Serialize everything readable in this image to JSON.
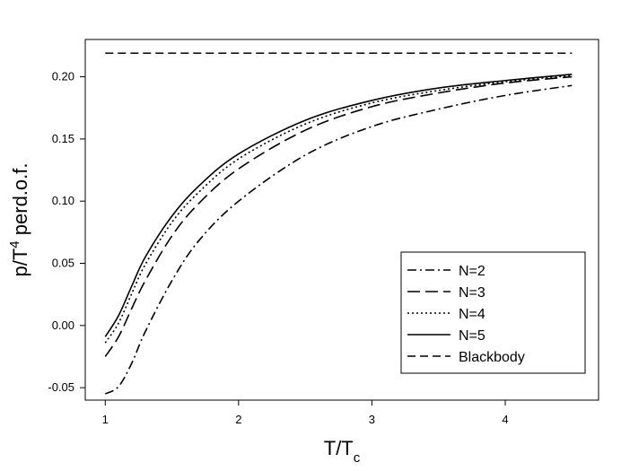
{
  "chart_data": {
    "type": "line",
    "title": "",
    "xlabel": {
      "main": "T/T",
      "sub": "c"
    },
    "ylabel": {
      "pre": "p/T",
      "sup": "4",
      "post": " perd.o.f."
    },
    "xlim": [
      0.85,
      4.7
    ],
    "ylim": [
      -0.06,
      0.23
    ],
    "x_ticks": [
      1,
      2,
      3,
      4
    ],
    "x_tick_labels": [
      "1",
      "2",
      "3",
      "4"
    ],
    "y_ticks": [
      -0.05,
      0.0,
      0.05,
      0.1,
      0.15,
      0.2
    ],
    "y_tick_labels": [
      "-0.05",
      "0.00",
      "0.05",
      "0.10",
      "0.15",
      "0.20"
    ],
    "grid": false,
    "legend_position": "bottom-right",
    "x": [
      1.0,
      1.1,
      1.2,
      1.3,
      1.5,
      1.7,
      2.0,
      2.5,
      3.0,
      3.5,
      4.0,
      4.5
    ],
    "series": [
      {
        "name": "N=2",
        "style": "dash-dot",
        "values": [
          -0.055,
          -0.049,
          -0.03,
          -0.005,
          0.036,
          0.068,
          0.1,
          0.137,
          0.16,
          0.174,
          0.185,
          0.193
        ]
      },
      {
        "name": "N=3",
        "style": "long-dash",
        "values": [
          -0.025,
          -0.009,
          0.014,
          0.036,
          0.072,
          0.098,
          0.126,
          0.157,
          0.176,
          0.187,
          0.195,
          0.2
        ]
      },
      {
        "name": "N=4",
        "style": "dotted",
        "values": [
          -0.014,
          0.002,
          0.026,
          0.049,
          0.083,
          0.107,
          0.134,
          0.162,
          0.179,
          0.189,
          0.196,
          0.201
        ]
      },
      {
        "name": "N=5",
        "style": "solid",
        "values": [
          -0.009,
          0.008,
          0.032,
          0.055,
          0.088,
          0.112,
          0.138,
          0.165,
          0.181,
          0.191,
          0.197,
          0.202
        ]
      },
      {
        "name": "Blackbody",
        "style": "dash",
        "values": [
          0.219,
          0.219,
          0.219,
          0.219,
          0.219,
          0.219,
          0.219,
          0.219,
          0.219,
          0.219,
          0.219,
          0.219
        ]
      }
    ]
  }
}
